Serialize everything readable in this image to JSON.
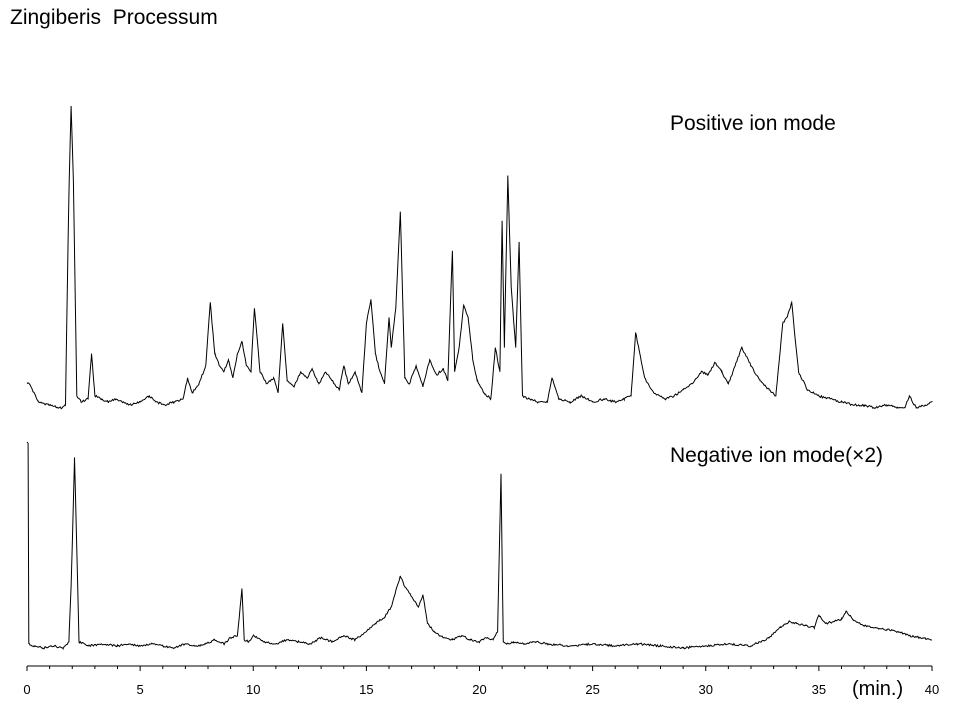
{
  "chart_data": {
    "type": "line",
    "title": "Zingiberis  Processum",
    "xlabel": "(min.)",
    "xlim": [
      0,
      40
    ],
    "xticks": [
      {
        "value": 0,
        "label": "0"
      },
      {
        "value": 5,
        "label": "5"
      },
      {
        "value": 10,
        "label": "10"
      },
      {
        "value": 15,
        "label": "15"
      },
      {
        "value": 20,
        "label": "20"
      },
      {
        "value": 25,
        "label": "25"
      },
      {
        "value": 30,
        "label": "30"
      },
      {
        "value": 35,
        "label": "35"
      },
      {
        "value": 40,
        "label": "40"
      }
    ],
    "grid": false,
    "line_color": "#000000",
    "series": [
      {
        "name": "Positive ion mode",
        "ylim": [
          0,
          100
        ],
        "x": [
          0.1,
          0.5,
          1.0,
          1.5,
          1.7,
          1.85,
          1.95,
          2.05,
          2.2,
          2.4,
          2.7,
          2.85,
          3.0,
          3.3,
          3.6,
          3.9,
          4.2,
          4.6,
          5.0,
          5.4,
          5.7,
          6.1,
          6.5,
          6.9,
          7.1,
          7.3,
          7.6,
          7.9,
          8.1,
          8.3,
          8.5,
          8.7,
          8.9,
          9.1,
          9.3,
          9.5,
          9.7,
          9.9,
          10.05,
          10.3,
          10.6,
          10.9,
          11.1,
          11.3,
          11.5,
          11.8,
          12.1,
          12.4,
          12.6,
          12.9,
          13.2,
          13.5,
          13.8,
          14.0,
          14.2,
          14.5,
          14.8,
          15.0,
          15.2,
          15.4,
          15.6,
          15.8,
          16.0,
          16.1,
          16.3,
          16.5,
          16.7,
          16.9,
          17.2,
          17.5,
          17.8,
          18.1,
          18.4,
          18.6,
          18.8,
          18.9,
          19.1,
          19.3,
          19.5,
          19.7,
          19.9,
          20.2,
          20.5,
          20.7,
          20.9,
          21.0,
          21.1,
          21.25,
          21.4,
          21.6,
          21.75,
          21.9,
          22.2,
          22.6,
          23.0,
          23.2,
          23.5,
          24.0,
          24.5,
          25.0,
          25.5,
          26.0,
          26.4,
          26.7,
          26.9,
          27.3,
          27.7,
          28.2,
          28.6,
          29.0,
          29.4,
          29.8,
          30.1,
          30.4,
          30.7,
          31.0,
          31.3,
          31.6,
          32.0,
          32.4,
          32.8,
          33.1,
          33.4,
          33.6,
          33.8,
          34.1,
          34.5,
          35.0,
          35.5,
          36.0,
          36.5,
          37.0,
          37.5,
          38.0,
          38.5,
          38.8,
          39.0,
          39.3,
          39.7,
          40.0
        ],
        "y": [
          8,
          2,
          1,
          0,
          1,
          70,
          100,
          75,
          4,
          2,
          3,
          18,
          4,
          3,
          2,
          3,
          2,
          1,
          2,
          4,
          2,
          1,
          2,
          3,
          10,
          5,
          8,
          14,
          35,
          18,
          14,
          12,
          16,
          10,
          18,
          22,
          14,
          12,
          33,
          12,
          8,
          10,
          5,
          28,
          9,
          7,
          12,
          10,
          13,
          8,
          12,
          9,
          6,
          14,
          8,
          12,
          5,
          28,
          36,
          18,
          12,
          8,
          30,
          20,
          33,
          65,
          10,
          8,
          14,
          7,
          16,
          11,
          13,
          9,
          52,
          12,
          20,
          34,
          30,
          16,
          9,
          5,
          3,
          20,
          12,
          62,
          20,
          77,
          40,
          20,
          55,
          4,
          3,
          2,
          2,
          10,
          3,
          2,
          4,
          2,
          3,
          2,
          3,
          4,
          25,
          10,
          5,
          3,
          4,
          6,
          8,
          12,
          11,
          15,
          12,
          8,
          14,
          20,
          14,
          9,
          6,
          4,
          28,
          30,
          35,
          12,
          6,
          4,
          3,
          2,
          1,
          1,
          0,
          1,
          0,
          0,
          4,
          0,
          1,
          2
        ]
      },
      {
        "name": "Negative ion mode(×2)",
        "ylim": [
          0,
          100
        ],
        "x": [
          0.05,
          0.08,
          0.3,
          0.7,
          1.2,
          1.6,
          1.85,
          1.95,
          2.1,
          2.3,
          2.7,
          3.3,
          4.0,
          4.5,
          5.0,
          5.5,
          6.0,
          6.5,
          7.0,
          7.5,
          7.9,
          8.3,
          8.7,
          9.0,
          9.3,
          9.5,
          9.6,
          9.8,
          10.0,
          10.5,
          11.0,
          11.5,
          12.0,
          12.5,
          13.0,
          13.5,
          14.0,
          14.5,
          15.0,
          15.4,
          15.8,
          16.1,
          16.3,
          16.5,
          16.7,
          17.0,
          17.3,
          17.5,
          17.7,
          18.0,
          18.4,
          18.8,
          19.2,
          19.6,
          20.0,
          20.3,
          20.6,
          20.8,
          20.95,
          21.05,
          21.2,
          21.5,
          22.0,
          22.5,
          23.0,
          24.0,
          25.0,
          26.0,
          27.0,
          28.0,
          29.0,
          30.0,
          31.0,
          32.0,
          32.8,
          33.3,
          33.7,
          34.0,
          34.4,
          34.8,
          35.0,
          35.3,
          35.7,
          36.0,
          36.2,
          36.5,
          37.0,
          37.5,
          38.0,
          38.5,
          39.0,
          39.5,
          40.0
        ],
        "y": [
          100,
          2,
          1,
          0,
          1,
          0,
          3,
          30,
          93,
          3,
          1,
          2,
          1,
          2,
          1,
          2,
          1,
          0,
          2,
          1,
          2,
          4,
          2,
          5,
          6,
          29,
          4,
          3,
          6,
          3,
          2,
          4,
          3,
          2,
          5,
          3,
          6,
          4,
          8,
          12,
          15,
          20,
          28,
          35,
          30,
          25,
          20,
          26,
          12,
          8,
          5,
          4,
          6,
          4,
          3,
          5,
          4,
          8,
          85,
          3,
          2,
          3,
          2,
          3,
          2,
          1,
          2,
          1,
          2,
          1,
          0,
          1,
          2,
          1,
          5,
          10,
          13,
          12,
          11,
          10,
          16,
          12,
          13,
          14,
          18,
          14,
          11,
          10,
          9,
          8,
          6,
          5,
          4
        ]
      }
    ]
  }
}
